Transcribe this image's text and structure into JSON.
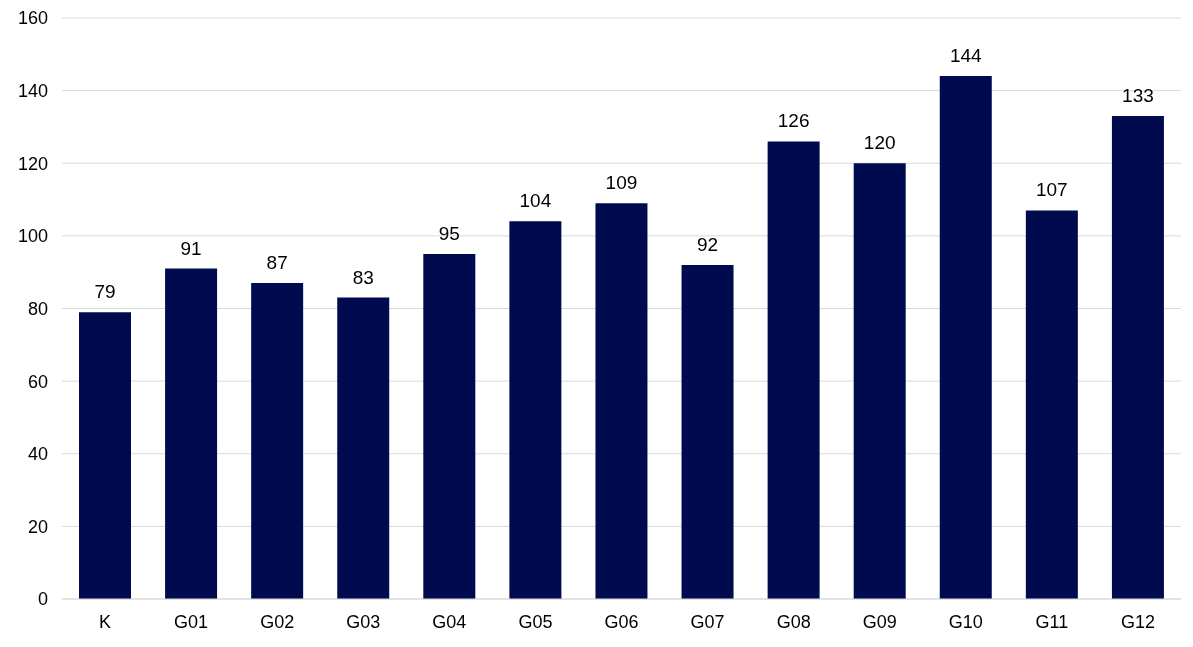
{
  "chart_data": {
    "type": "bar",
    "categories": [
      "K",
      "G01",
      "G02",
      "G03",
      "G04",
      "G05",
      "G06",
      "G07",
      "G08",
      "G09",
      "G10",
      "G11",
      "G12"
    ],
    "values": [
      79,
      91,
      87,
      83,
      95,
      104,
      109,
      92,
      126,
      120,
      144,
      107,
      133
    ],
    "color": "#000b4f",
    "ylim": [
      0,
      160
    ],
    "yticks": [
      0,
      20,
      40,
      60,
      80,
      100,
      120,
      140,
      160
    ],
    "grid": "y",
    "data_labels": true
  }
}
